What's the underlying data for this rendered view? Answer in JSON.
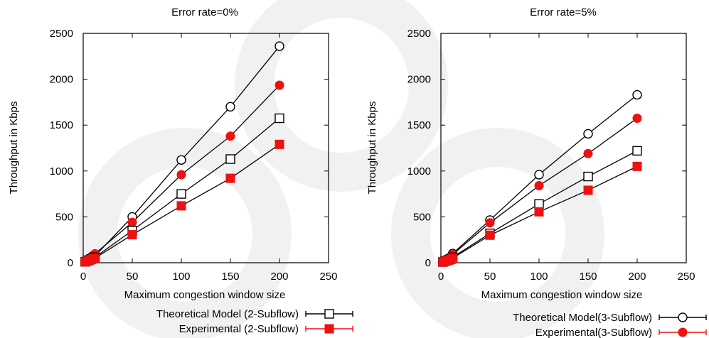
{
  "chart_data": [
    {
      "type": "line",
      "title": "Error rate=0%",
      "xlabel": "Maximum congestion window size",
      "ylabel": "Throughput in Kbps",
      "xlim": [
        0,
        250
      ],
      "ylim": [
        0,
        2500
      ],
      "xticks": [
        0,
        50,
        100,
        150,
        200,
        250
      ],
      "yticks": [
        0,
        500,
        1000,
        1500,
        2000,
        2500
      ],
      "grid": false,
      "legend_position": "below",
      "series": [
        {
          "name": "",
          "marker": "circle-open",
          "color": "#000000",
          "x": [
            2,
            4,
            6,
            8,
            10,
            12,
            50,
            100,
            150,
            200
          ],
          "y": [
            12,
            25,
            37,
            50,
            62,
            75,
            500,
            1120,
            1700,
            2360
          ]
        },
        {
          "name": "",
          "marker": "circle-filled",
          "color": "#ee1111",
          "x": [
            2,
            4,
            6,
            8,
            10,
            12,
            50,
            100,
            150,
            200
          ],
          "y": [
            15,
            30,
            45,
            62,
            80,
            98,
            440,
            960,
            1380,
            1935
          ]
        },
        {
          "name": "Theoretical Model (2-Subflow)",
          "marker": "square-open",
          "color": "#000000",
          "x": [
            2,
            4,
            6,
            8,
            10,
            12,
            50,
            100,
            150,
            200
          ],
          "y": [
            10,
            20,
            30,
            40,
            50,
            60,
            350,
            750,
            1130,
            1575
          ]
        },
        {
          "name": "Experimental (2-Subflow)",
          "marker": "square-filled",
          "color": "#ee1111",
          "x": [
            2,
            4,
            6,
            8,
            10,
            12,
            50,
            100,
            150,
            200
          ],
          "y": [
            8,
            16,
            25,
            33,
            42,
            50,
            305,
            620,
            920,
            1290
          ]
        }
      ]
    },
    {
      "type": "line",
      "title": "Error rate=5%",
      "xlabel": "Maximum congestion window size",
      "ylabel": "Throughput in Kbps",
      "xlim": [
        0,
        250
      ],
      "ylim": [
        0,
        2500
      ],
      "xticks": [
        0,
        50,
        100,
        150,
        200,
        250
      ],
      "yticks": [
        0,
        500,
        1000,
        1500,
        2000,
        2500
      ],
      "grid": false,
      "legend_position": "below",
      "series": [
        {
          "name": "Theoretical Model(3-Subflow)",
          "marker": "circle-open",
          "color": "#000000",
          "x": [
            2,
            4,
            6,
            8,
            10,
            12,
            50,
            100,
            150,
            200
          ],
          "y": [
            12,
            25,
            37,
            50,
            62,
            100,
            465,
            960,
            1405,
            1830
          ]
        },
        {
          "name": "Experimental(3-Subflow)",
          "marker": "circle-filled",
          "color": "#ee1111",
          "x": [
            2,
            4,
            6,
            8,
            10,
            12,
            50,
            100,
            150,
            200
          ],
          "y": [
            10,
            22,
            34,
            45,
            56,
            90,
            435,
            840,
            1190,
            1575
          ]
        },
        {
          "name": "",
          "marker": "square-open",
          "color": "#000000",
          "x": [
            2,
            4,
            6,
            8,
            10,
            12,
            50,
            100,
            150,
            200
          ],
          "y": [
            8,
            16,
            24,
            32,
            40,
            60,
            320,
            640,
            940,
            1220
          ]
        },
        {
          "name": "",
          "marker": "square-filled",
          "color": "#ee1111",
          "x": [
            2,
            4,
            6,
            8,
            10,
            12,
            50,
            100,
            150,
            200
          ],
          "y": [
            6,
            14,
            21,
            28,
            35,
            50,
            300,
            555,
            790,
            1050
          ]
        }
      ]
    }
  ]
}
